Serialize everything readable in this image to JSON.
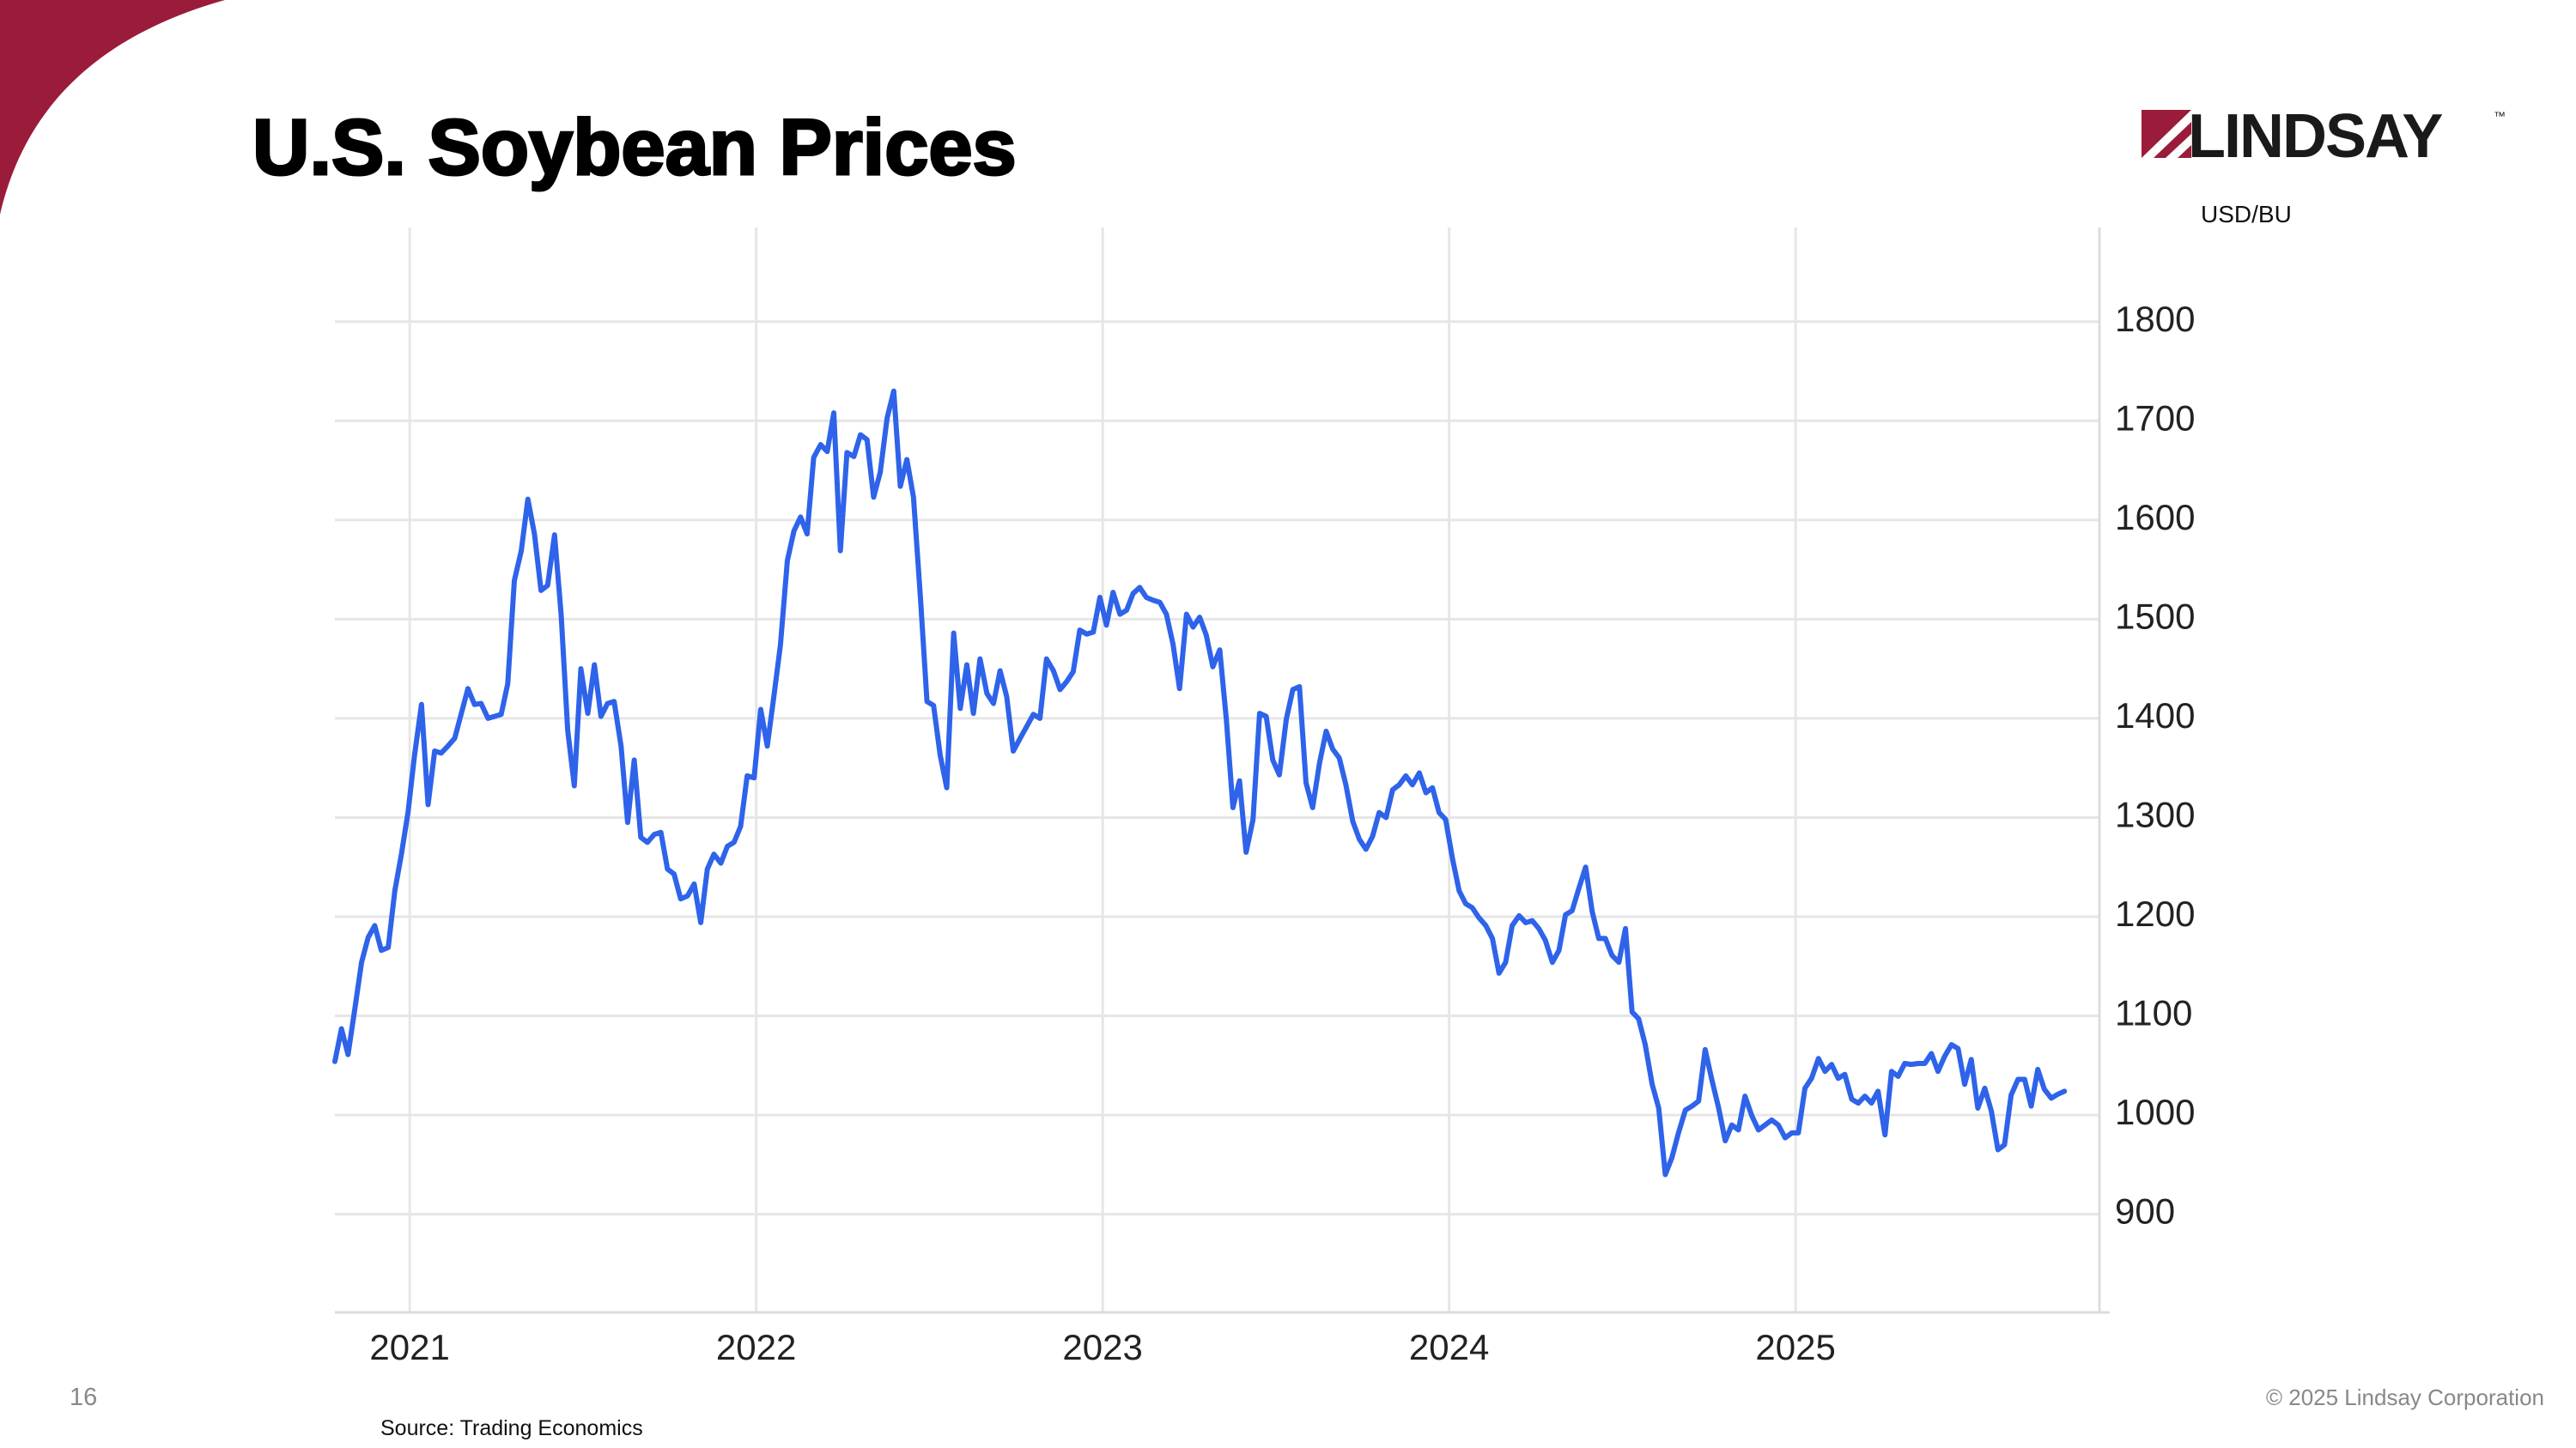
{
  "slide": {
    "page_number": "16",
    "copyright": "© 2025 Lindsay Corporation",
    "source": "Source: Trading Economics",
    "logo": "LINDSAY",
    "logo_mark": "™"
  },
  "chart_data": {
    "type": "line",
    "title": "U.S. Soybean Prices",
    "y_label": "USD/BU",
    "color": "#2e63ea",
    "grid": true,
    "xlim": [
      2020.784,
      2025.877
    ],
    "xticks": [
      2021,
      2022,
      2023,
      2024,
      2025
    ],
    "ylim": [
      801,
      1895
    ],
    "yticks": [
      900,
      1000,
      1100,
      1200,
      1300,
      1400,
      1500,
      1600,
      1700,
      1800
    ],
    "x": [
      2020.784,
      2020.803,
      2020.822,
      2020.842,
      2020.861,
      2020.88,
      2020.899,
      2020.918,
      2020.938,
      2020.957,
      2020.976,
      2020.995,
      2021.014,
      2021.034,
      2021.053,
      2021.072,
      2021.091,
      2021.11,
      2021.13,
      2021.149,
      2021.168,
      2021.187,
      2021.206,
      2021.226,
      2021.245,
      2021.264,
      2021.283,
      2021.302,
      2021.322,
      2021.341,
      2021.36,
      2021.379,
      2021.398,
      2021.418,
      2021.437,
      2021.456,
      2021.475,
      2021.494,
      2021.514,
      2021.533,
      2021.552,
      2021.571,
      2021.59,
      2021.61,
      2021.629,
      2021.648,
      2021.667,
      2021.686,
      2021.706,
      2021.725,
      2021.744,
      2021.763,
      2021.782,
      2021.802,
      2021.821,
      2021.84,
      2021.859,
      2021.878,
      2021.898,
      2021.917,
      2021.936,
      2021.955,
      2021.974,
      2021.994,
      2022.013,
      2022.032,
      2022.051,
      2022.07,
      2022.09,
      2022.109,
      2022.128,
      2022.147,
      2022.166,
      2022.186,
      2022.205,
      2022.224,
      2022.243,
      2022.262,
      2022.282,
      2022.301,
      2022.32,
      2022.339,
      2022.358,
      2022.378,
      2022.397,
      2022.416,
      2022.435,
      2022.454,
      2022.474,
      2022.493,
      2022.512,
      2022.531,
      2022.55,
      2022.57,
      2022.589,
      2022.608,
      2022.627,
      2022.646,
      2022.666,
      2022.685,
      2022.704,
      2022.723,
      2022.742,
      2022.762,
      2022.781,
      2022.8,
      2022.819,
      2022.838,
      2022.858,
      2022.877,
      2022.896,
      2022.915,
      2022.934,
      2022.954,
      2022.973,
      2022.992,
      2023.011,
      2023.03,
      2023.05,
      2023.069,
      2023.088,
      2023.107,
      2023.126,
      2023.146,
      2023.165,
      2023.184,
      2023.203,
      2023.222,
      2023.242,
      2023.261,
      2023.28,
      2023.299,
      2023.318,
      2023.338,
      2023.357,
      2023.376,
      2023.395,
      2023.414,
      2023.434,
      2023.453,
      2023.472,
      2023.491,
      2023.51,
      2023.53,
      2023.549,
      2023.568,
      2023.587,
      2023.606,
      2023.626,
      2023.645,
      2023.664,
      2023.683,
      2023.702,
      2023.722,
      2023.741,
      2023.76,
      2023.779,
      2023.798,
      2023.818,
      2023.837,
      2023.856,
      2023.875,
      2023.894,
      2023.914,
      2023.933,
      2023.952,
      2023.971,
      2023.99,
      2024.01,
      2024.029,
      2024.048,
      2024.067,
      2024.086,
      2024.106,
      2024.125,
      2024.144,
      2024.163,
      2024.182,
      2024.202,
      2024.221,
      2024.24,
      2024.259,
      2024.278,
      2024.298,
      2024.317,
      2024.336,
      2024.355,
      2024.374,
      2024.394,
      2024.413,
      2024.432,
      2024.451,
      2024.47,
      2024.49,
      2024.509,
      2024.528,
      2024.547,
      2024.566,
      2024.586,
      2024.605,
      2024.624,
      2024.643,
      2024.662,
      2024.682,
      2024.701,
      2024.72,
      2024.739,
      2024.758,
      2024.778,
      2024.797,
      2024.816,
      2024.835,
      2024.854,
      2024.874,
      2024.893,
      2024.912,
      2024.931,
      2024.95,
      2024.97,
      2024.989,
      2025.008,
      2025.027,
      2025.046,
      2025.066,
      2025.085,
      2025.104,
      2025.123,
      2025.142,
      2025.162,
      2025.181,
      2025.2,
      2025.219,
      2025.238,
      2025.258,
      2025.277,
      2025.296,
      2025.315,
      2025.334,
      2025.354,
      2025.373,
      2025.392,
      2025.411,
      2025.43,
      2025.45,
      2025.469,
      2025.488,
      2025.507,
      2025.526,
      2025.546,
      2025.565,
      2025.584,
      2025.603,
      2025.622,
      2025.642,
      2025.661,
      2025.68,
      2025.699,
      2025.718,
      2025.738,
      2025.757,
      2025.776
    ],
    "values": [
      1054,
      1087,
      1061,
      1108,
      1154,
      1179,
      1191,
      1166,
      1169,
      1226,
      1263,
      1305,
      1363,
      1414,
      1313,
      1367,
      1365,
      1372,
      1380,
      1405,
      1430,
      1414,
      1415,
      1400,
      1402,
      1404,
      1435,
      1539,
      1569,
      1621,
      1586,
      1529,
      1534,
      1585,
      1505,
      1388,
      1332,
      1450,
      1405,
      1454,
      1402,
      1415,
      1417,
      1372,
      1295,
      1358,
      1280,
      1275,
      1283,
      1285,
      1248,
      1243,
      1218,
      1221,
      1233,
      1194,
      1248,
      1263,
      1254,
      1271,
      1275,
      1291,
      1342,
      1340,
      1409,
      1372,
      1422,
      1474,
      1559,
      1589,
      1603,
      1586,
      1663,
      1676,
      1669,
      1708,
      1569,
      1668,
      1664,
      1686,
      1681,
      1623,
      1648,
      1703,
      1730,
      1634,
      1661,
      1623,
      1522,
      1417,
      1413,
      1363,
      1330,
      1486,
      1410,
      1454,
      1405,
      1460,
      1425,
      1415,
      1448,
      1422,
      1367,
      1380,
      1392,
      1404,
      1400,
      1460,
      1448,
      1429,
      1437,
      1447,
      1489,
      1485,
      1487,
      1522,
      1494,
      1527,
      1505,
      1509,
      1526,
      1532,
      1522,
      1519,
      1517,
      1505,
      1475,
      1430,
      1505,
      1492,
      1502,
      1484,
      1452,
      1469,
      1399,
      1310,
      1337,
      1265,
      1298,
      1405,
      1402,
      1358,
      1343,
      1399,
      1429,
      1432,
      1335,
      1310,
      1355,
      1387,
      1369,
      1360,
      1333,
      1296,
      1278,
      1268,
      1281,
      1305,
      1300,
      1328,
      1333,
      1342,
      1333,
      1345,
      1325,
      1330,
      1305,
      1298,
      1258,
      1226,
      1213,
      1209,
      1199,
      1191,
      1178,
      1143,
      1154,
      1191,
      1201,
      1194,
      1196,
      1188,
      1176,
      1154,
      1166,
      1202,
      1206,
      1228,
      1250,
      1205,
      1178,
      1178,
      1161,
      1154,
      1188,
      1104,
      1097,
      1071,
      1031,
      1007,
      940,
      957,
      982,
      1005,
      1009,
      1014,
      1066,
      1036,
      1007,
      974,
      990,
      985,
      1019,
      999,
      985,
      990,
      995,
      990,
      977,
      982,
      982,
      1027,
      1037,
      1057,
      1044,
      1051,
      1037,
      1041,
      1016,
      1012,
      1019,
      1012,
      1024,
      980,
      1044,
      1039,
      1052,
      1051,
      1052,
      1052,
      1062,
      1044,
      1059,
      1071,
      1067,
      1031,
      1056,
      1007,
      1027,
      1004,
      965,
      970,
      1020,
      1036,
      1036,
      1009,
      1046,
      1026,
      1017,
      1021,
      1024
    ]
  }
}
